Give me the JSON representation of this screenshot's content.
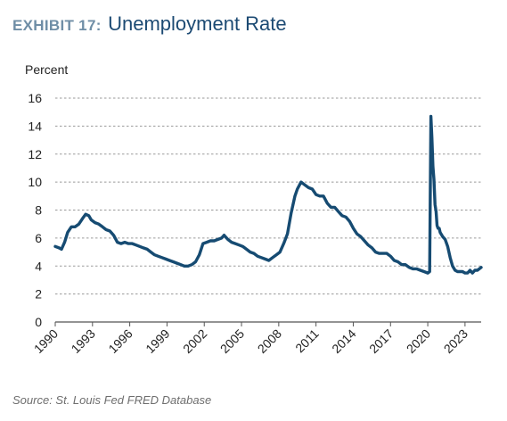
{
  "header": {
    "exhibit": "EXHIBIT 17:",
    "title": "Unemployment Rate"
  },
  "source": "Source: St. Louis Fed FRED Database",
  "colors": {
    "line": "#164b72",
    "grid": "#9a9a9a",
    "exhibit": "#6f8ea6",
    "title": "#1c4a73"
  },
  "chart_data": {
    "type": "line",
    "title": "Unemployment Rate",
    "ylabel": "Percent",
    "xlabel": "",
    "xlim": [
      1990,
      2024.3
    ],
    "ylim": [
      0,
      16
    ],
    "y_ticks": [
      0,
      2,
      4,
      6,
      8,
      10,
      12,
      14,
      16
    ],
    "x_ticks": [
      1990,
      1993,
      1996,
      1999,
      2002,
      2005,
      2008,
      2011,
      2014,
      2017,
      2020,
      2023
    ],
    "y_tick_labels": [
      "0",
      "2",
      "4",
      "6",
      "8",
      "10",
      "12",
      "14",
      "16"
    ],
    "x_tick_labels": [
      "1990",
      "1993",
      "1996",
      "1999",
      "2002",
      "2005",
      "2008",
      "2011",
      "2014",
      "2017",
      "2020",
      "2023"
    ],
    "grid": "horizontal",
    "series": [
      {
        "x": [
          1990.0,
          1990.3,
          1990.5,
          1990.75,
          1991.0,
          1991.3,
          1991.6,
          1991.9,
          1992.2,
          1992.45,
          1992.7,
          1992.9,
          1993.2,
          1993.5,
          1993.8,
          1994.1,
          1994.4,
          1994.7,
          1995.0,
          1995.3,
          1995.6,
          1995.9,
          1996.2,
          1996.5,
          1996.8,
          1997.1,
          1997.4,
          1997.7,
          1998.0,
          1998.3,
          1998.6,
          1998.9,
          1999.2,
          1999.5,
          1999.8,
          2000.1,
          2000.4,
          2000.7,
          2001.0,
          2001.3,
          2001.6,
          2001.9,
          2002.2,
          2002.5,
          2002.8,
          2003.1,
          2003.4,
          2003.6,
          2003.9,
          2004.2,
          2004.5,
          2004.8,
          2005.1,
          2005.4,
          2005.7,
          2006.0,
          2006.3,
          2006.6,
          2006.9,
          2007.2,
          2007.5,
          2007.8,
          2008.1,
          2008.4,
          2008.7,
          2009.0,
          2009.3,
          2009.5,
          2009.8,
          2010.1,
          2010.4,
          2010.7,
          2011.0,
          2011.3,
          2011.6,
          2011.9,
          2012.2,
          2012.5,
          2012.8,
          2013.1,
          2013.4,
          2013.7,
          2014.0,
          2014.3,
          2014.6,
          2014.9,
          2015.2,
          2015.5,
          2015.8,
          2016.1,
          2016.4,
          2016.7,
          2017.0,
          2017.3,
          2017.6,
          2017.9,
          2018.2,
          2018.5,
          2018.8,
          2019.1,
          2019.4,
          2019.7,
          2020.0,
          2020.15,
          2020.25,
          2020.33,
          2020.42,
          2020.5,
          2020.58,
          2020.67,
          2020.75,
          2020.83,
          2020.92,
          2021.0,
          2021.2,
          2021.4,
          2021.6,
          2021.8,
          2022.0,
          2022.2,
          2022.4,
          2022.6,
          2022.8,
          2023.0,
          2023.2,
          2023.4,
          2023.6,
          2023.8,
          2024.0,
          2024.3
        ],
        "values": [
          5.4,
          5.3,
          5.2,
          5.7,
          6.4,
          6.8,
          6.8,
          7.0,
          7.4,
          7.7,
          7.6,
          7.3,
          7.1,
          7.0,
          6.8,
          6.6,
          6.5,
          6.2,
          5.7,
          5.6,
          5.7,
          5.6,
          5.6,
          5.5,
          5.4,
          5.3,
          5.2,
          5.0,
          4.8,
          4.7,
          4.6,
          4.5,
          4.4,
          4.3,
          4.2,
          4.1,
          4.0,
          4.0,
          4.1,
          4.3,
          4.8,
          5.6,
          5.7,
          5.8,
          5.8,
          5.9,
          6.0,
          6.2,
          5.9,
          5.7,
          5.6,
          5.5,
          5.4,
          5.2,
          5.0,
          4.9,
          4.7,
          4.6,
          4.5,
          4.4,
          4.6,
          4.8,
          5.0,
          5.6,
          6.3,
          7.8,
          9.0,
          9.5,
          10.0,
          9.8,
          9.6,
          9.5,
          9.1,
          9.0,
          9.0,
          8.5,
          8.2,
          8.2,
          7.9,
          7.6,
          7.5,
          7.2,
          6.7,
          6.3,
          6.1,
          5.8,
          5.5,
          5.3,
          5.0,
          4.9,
          4.9,
          4.9,
          4.7,
          4.4,
          4.3,
          4.1,
          4.1,
          3.9,
          3.8,
          3.8,
          3.7,
          3.6,
          3.5,
          3.6,
          14.7,
          13.2,
          11.1,
          10.2,
          8.4,
          7.9,
          6.9,
          6.7,
          6.7,
          6.4,
          6.1,
          5.9,
          5.4,
          4.6,
          4.0,
          3.7,
          3.6,
          3.6,
          3.6,
          3.5,
          3.5,
          3.7,
          3.5,
          3.7,
          3.7,
          3.9
        ]
      }
    ]
  }
}
